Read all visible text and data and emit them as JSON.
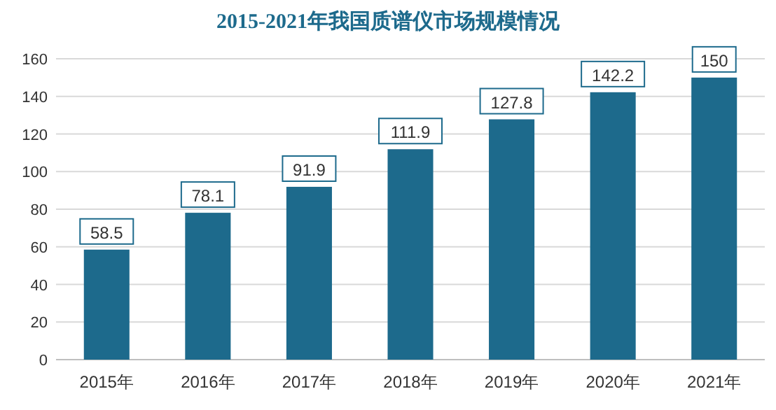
{
  "chart_data": {
    "type": "bar",
    "title": "2015-2021年我国质谱仪市场规模情况",
    "categories": [
      "2015年",
      "2016年",
      "2017年",
      "2018年",
      "2019年",
      "2020年",
      "2021年"
    ],
    "values": [
      58.5,
      78.1,
      91.9,
      111.9,
      127.8,
      142.2,
      150
    ],
    "color": "#1d6a8c",
    "ylim": [
      0,
      160
    ],
    "yticks": [
      0,
      20,
      40,
      60,
      80,
      100,
      120,
      140,
      160
    ],
    "grid": "y",
    "data_labels": true
  }
}
